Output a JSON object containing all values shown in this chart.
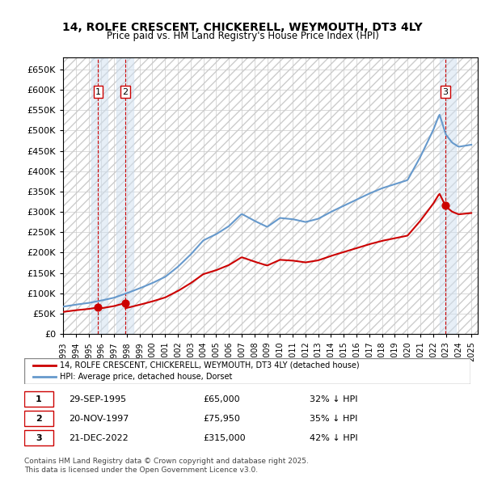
{
  "title": "14, ROLFE CRESCENT, CHICKERELL, WEYMOUTH, DT3 4LY",
  "subtitle": "Price paid vs. HM Land Registry's House Price Index (HPI)",
  "ylabel": "",
  "ylim": [
    0,
    680000
  ],
  "yticks": [
    0,
    50000,
    100000,
    150000,
    200000,
    250000,
    300000,
    350000,
    400000,
    450000,
    500000,
    550000,
    600000,
    650000
  ],
  "ytick_labels": [
    "£0",
    "£50K",
    "£100K",
    "£150K",
    "£200K",
    "£250K",
    "£300K",
    "£350K",
    "£400K",
    "£450K",
    "£500K",
    "£550K",
    "£600K",
    "£650K"
  ],
  "sale_dates": [
    "1995-09-29",
    "1997-11-20",
    "2022-12-21"
  ],
  "sale_prices": [
    65000,
    75950,
    315000
  ],
  "sale_years": [
    1995.75,
    1997.89,
    2022.97
  ],
  "hpi_years": [
    1993,
    1994,
    1995,
    1996,
    1997,
    1998,
    1999,
    2000,
    2001,
    2002,
    2003,
    2004,
    2005,
    2006,
    2007,
    2008,
    2009,
    2010,
    2011,
    2012,
    2013,
    2014,
    2015,
    2016,
    2017,
    2018,
    2019,
    2020,
    2021,
    2022,
    2023,
    2024,
    2025
  ],
  "hpi_values": [
    67000,
    72000,
    76000,
    82000,
    89000,
    100000,
    112000,
    125000,
    140000,
    165000,
    195000,
    230000,
    245000,
    265000,
    290000,
    275000,
    265000,
    285000,
    280000,
    275000,
    285000,
    300000,
    315000,
    330000,
    345000,
    355000,
    365000,
    375000,
    430000,
    490000,
    470000,
    455000,
    460000
  ],
  "legend_line1": "14, ROLFE CRESCENT, CHICKERELL, WEYMOUTH, DT3 4LY (detached house)",
  "legend_line2": "HPI: Average price, detached house, Dorset",
  "footer": "Contains HM Land Registry data © Crown copyright and database right 2025.\nThis data is licensed under the Open Government Licence v3.0.",
  "line_color_red": "#cc0000",
  "line_color_blue": "#6699cc",
  "bg_hatch": "#e8eef4",
  "table_data": [
    [
      "1",
      "29-SEP-1995",
      "£65,000",
      "32% ↓ HPI"
    ],
    [
      "2",
      "20-NOV-1997",
      "£75,950",
      "35% ↓ HPI"
    ],
    [
      "3",
      "21-DEC-2022",
      "£315,000",
      "42% ↓ HPI"
    ]
  ]
}
